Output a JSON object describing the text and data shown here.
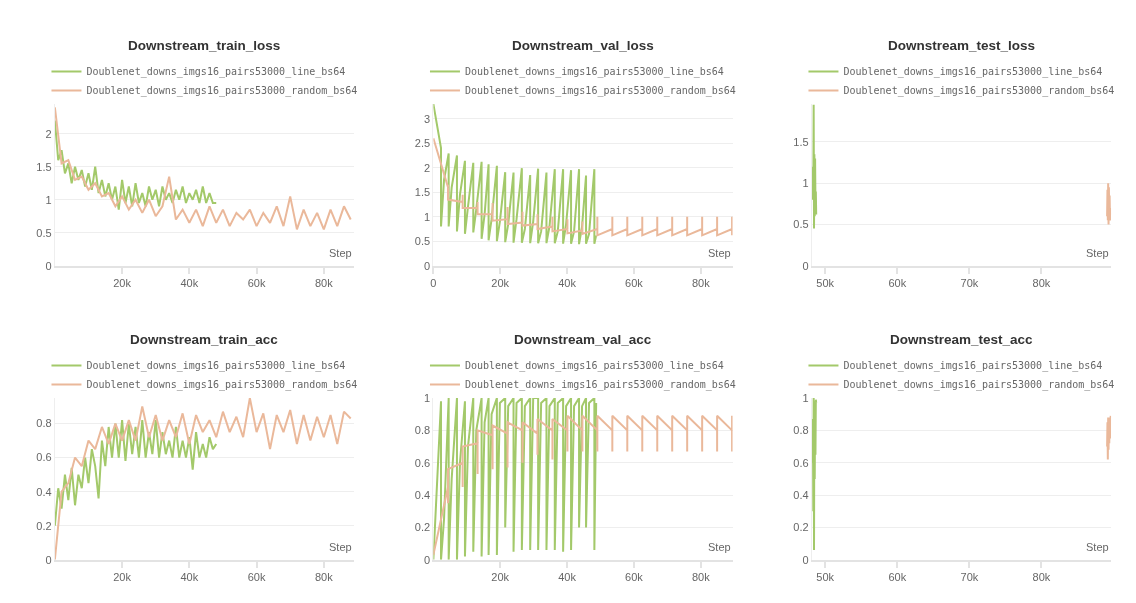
{
  "chart_data": [
    {
      "type": "line",
      "title": "Downstream_train_loss",
      "xlabel": "Step",
      "grid": "y",
      "legend": "top",
      "xlim": [
        0,
        89000
      ],
      "xticks": [
        {
          "value": 20000,
          "label": "20k"
        },
        {
          "value": 40000,
          "label": "40k"
        },
        {
          "value": 60000,
          "label": "60k"
        },
        {
          "value": 80000,
          "label": "80k"
        }
      ],
      "ylim": [
        0,
        2.45
      ],
      "yticks": [
        0,
        0.5,
        1,
        1.5,
        2
      ],
      "series": [
        {
          "name": "Doublenet_downs_imgs16_pairs53000_line_bs64",
          "color": "#a3c96a",
          "x": [
            0,
            1000,
            2000,
            3000,
            4000,
            5000,
            6000,
            7000,
            8000,
            9000,
            10000,
            11000,
            12000,
            13000,
            14000,
            15000,
            16000,
            17000,
            18000,
            19000,
            20000,
            21000,
            22000,
            23000,
            24000,
            25000,
            26000,
            27000,
            28000,
            29000,
            30000,
            31000,
            32000,
            33000,
            34000,
            35000,
            36000,
            37000,
            38000,
            39000,
            40000,
            41000,
            42000,
            43000,
            44000,
            45000,
            46000,
            47000,
            48000
          ],
          "values": [
            2.2,
            1.6,
            1.75,
            1.4,
            1.55,
            1.25,
            1.5,
            1.3,
            1.45,
            1.2,
            1.4,
            1.15,
            1.5,
            1.1,
            1.3,
            1.05,
            1.25,
            1.0,
            1.2,
            0.85,
            1.3,
            0.95,
            1.2,
            0.9,
            1.25,
            0.95,
            1.1,
            0.9,
            1.2,
            1.0,
            1.15,
            0.9,
            1.2,
            1.0,
            1.1,
            0.95,
            1.15,
            1.0,
            1.2,
            0.95,
            1.1,
            1.0,
            1.15,
            0.95,
            1.2,
            0.95,
            1.1,
            0.95,
            0.95
          ]
        },
        {
          "name": "Doublenet_downs_imgs16_pairs53000_random_bs64",
          "color": "#eab89a",
          "x": [
            0,
            2000,
            4000,
            6000,
            8000,
            10000,
            12000,
            14000,
            16000,
            18000,
            20000,
            22000,
            24000,
            26000,
            28000,
            30000,
            32000,
            34000,
            36000,
            38000,
            40000,
            42000,
            44000,
            46000,
            48000,
            50000,
            52000,
            54000,
            56000,
            58000,
            60000,
            62000,
            64000,
            66000,
            68000,
            70000,
            72000,
            74000,
            76000,
            78000,
            80000,
            82000,
            84000,
            86000,
            88000
          ],
          "values": [
            2.4,
            1.55,
            1.6,
            1.3,
            1.35,
            1.15,
            1.25,
            1.05,
            1.1,
            0.9,
            1.05,
            0.85,
            1.0,
            0.8,
            1.0,
            0.75,
            0.9,
            1.35,
            0.7,
            0.85,
            0.65,
            0.85,
            0.6,
            0.9,
            0.65,
            0.85,
            0.6,
            0.8,
            0.7,
            0.85,
            0.6,
            0.8,
            0.65,
            0.9,
            0.6,
            1.05,
            0.55,
            0.85,
            0.6,
            0.8,
            0.55,
            0.85,
            0.6,
            0.9,
            0.7
          ]
        }
      ]
    },
    {
      "type": "line",
      "title": "Downstream_val_loss",
      "xlabel": "Step",
      "grid": "y",
      "legend": "top",
      "xlim": [
        0,
        89500
      ],
      "xticks": [
        0,
        {
          "value": 20000,
          "label": "20k"
        },
        {
          "value": 40000,
          "label": "40k"
        },
        {
          "value": 60000,
          "label": "60k"
        },
        {
          "value": 80000,
          "label": "80k"
        }
      ],
      "ylim": [
        0,
        3.3
      ],
      "yticks": [
        0,
        0.5,
        1,
        1.5,
        2,
        2.5,
        3
      ],
      "series": [
        {
          "name": "Doublenet_downs_imgs16_pairs53000_line_bs64",
          "color": "#a3c96a",
          "x": [
            0,
            2290,
            2290,
            3190,
            4580,
            4580,
            5480,
            7060,
            7060,
            7960,
            9450,
            9450,
            10350,
            11940,
            11940,
            12840,
            14430,
            14430,
            15330,
            16520,
            16520,
            17420,
            19000,
            19000,
            19900,
            21490,
            21490,
            22390,
            23980,
            23980,
            24880,
            26470,
            26470,
            27370,
            28960,
            28960,
            29860,
            31340,
            31340,
            32240,
            33830,
            33830,
            34730,
            36320,
            36320,
            37220,
            38810,
            38810,
            39710,
            41190,
            41190,
            42090,
            43580,
            43580,
            44480,
            45670,
            45670,
            46570,
            48160,
            48160,
            48700
          ],
          "values": [
            3.3,
            2.4,
            0.8,
            1.75,
            2.29,
            0.8,
            1.6,
            2.25,
            0.7,
            1.45,
            2.14,
            0.65,
            1.2,
            2.1,
            0.68,
            1.15,
            2.12,
            0.55,
            1.05,
            2.07,
            0.52,
            0.95,
            2.04,
            0.5,
            0.9,
            1.91,
            0.48,
            0.85,
            1.9,
            0.47,
            0.95,
            1.99,
            0.47,
            0.75,
            1.85,
            0.46,
            0.9,
            1.98,
            0.46,
            0.7,
            1.9,
            0.46,
            0.8,
            1.97,
            0.46,
            0.7,
            1.97,
            0.45,
            0.85,
            1.95,
            0.45,
            0.7,
            1.97,
            0.44,
            0.8,
            1.84,
            0.45,
            0.65,
            1.97,
            0.45,
            0.62
          ]
        },
        {
          "name": "Doublenet_downs_imgs16_pairs53000_random_bs64",
          "color": "#eab89a",
          "x": [
            0,
            4380,
            4380,
            4380,
            8760,
            8760,
            8760,
            13230,
            13230,
            13230,
            17710,
            17710,
            17710,
            22190,
            22190,
            22190,
            26670,
            26670,
            26670,
            31140,
            31140,
            31140,
            35620,
            35620,
            35620,
            40100,
            40100,
            40100,
            44580,
            44580,
            44580,
            49050,
            49050,
            49050,
            53530,
            53530,
            53530,
            58010,
            58010,
            58010,
            62490,
            62490,
            62490,
            66970,
            66970,
            66970,
            71440,
            71440,
            71440,
            75920,
            75920,
            75920,
            80400,
            80400,
            80400,
            84880,
            84880,
            84880,
            89350,
            89350,
            89350
          ],
          "values": [
            2.6,
            1.6,
            1.65,
            1.35,
            1.3,
            1.45,
            1.18,
            1.18,
            1.3,
            1.05,
            1.05,
            1.28,
            0.92,
            0.95,
            1.2,
            0.85,
            0.88,
            1.1,
            0.82,
            0.85,
            1.05,
            0.75,
            0.8,
            1.0,
            0.7,
            0.75,
            0.95,
            0.66,
            0.72,
            0.9,
            0.65,
            0.75,
            1.0,
            0.62,
            0.75,
            1.0,
            0.62,
            0.75,
            1.0,
            0.62,
            0.75,
            1.0,
            0.62,
            0.75,
            1.0,
            0.62,
            0.75,
            1.0,
            0.62,
            0.75,
            1.0,
            0.62,
            0.75,
            1.0,
            0.62,
            0.75,
            1.0,
            0.62,
            0.75,
            1.0,
            0.62
          ]
        }
      ]
    },
    {
      "type": "line",
      "title": "Downstream_test_loss",
      "xlabel": "Step",
      "grid": "y",
      "legend": "top",
      "xlim": [
        48150,
        89650
      ],
      "xticks": [
        {
          "value": 50000,
          "label": "50k"
        },
        {
          "value": 60000,
          "label": "60k"
        },
        {
          "value": 70000,
          "label": "70k"
        },
        {
          "value": 80000,
          "label": "80k"
        }
      ],
      "ylim": [
        0,
        1.96
      ],
      "yticks": [
        0,
        0.5,
        1,
        1.5
      ],
      "series": [
        {
          "name": "Doublenet_downs_imgs16_pairs53000_line_bs64",
          "color": "#a3c96a",
          "x": [
            48250,
            48300,
            48350,
            48400,
            48450,
            48500,
            48550,
            48600,
            48650,
            48700,
            48750
          ],
          "values": [
            0.8,
            1.2,
            0.85,
            1.95,
            0.45,
            1.35,
            0.6,
            1.3,
            0.75,
            0.9,
            0.62
          ]
        },
        {
          "name": "Doublenet_downs_imgs16_pairs53000_random_bs64",
          "color": "#eab89a",
          "x": [
            89100,
            89150,
            89200,
            89250,
            89300,
            89350,
            89400,
            89450,
            89500,
            89550,
            89600
          ],
          "values": [
            0.6,
            0.92,
            0.55,
            1.0,
            0.5,
            0.95,
            0.6,
            0.85,
            0.55,
            0.7,
            0.62
          ]
        }
      ]
    },
    {
      "type": "line",
      "title": "Downstream_train_acc",
      "xlabel": "Step",
      "grid": "y",
      "legend": "top",
      "xlim": [
        0,
        89000
      ],
      "xticks": [
        {
          "value": 20000,
          "label": "20k"
        },
        {
          "value": 40000,
          "label": "40k"
        },
        {
          "value": 60000,
          "label": "60k"
        },
        {
          "value": 80000,
          "label": "80k"
        }
      ],
      "ylim": [
        0,
        0.95
      ],
      "yticks": [
        0,
        0.2,
        0.4,
        0.6,
        0.8
      ],
      "series": [
        {
          "name": "Doublenet_downs_imgs16_pairs53000_line_bs64",
          "color": "#a3c96a",
          "x": [
            0,
            1000,
            2000,
            3000,
            4000,
            5000,
            6000,
            7000,
            8000,
            9000,
            10000,
            11000,
            12000,
            13000,
            14000,
            15000,
            16000,
            17000,
            18000,
            19000,
            20000,
            21000,
            22000,
            23000,
            24000,
            25000,
            26000,
            27000,
            28000,
            29000,
            30000,
            31000,
            32000,
            33000,
            34000,
            35000,
            36000,
            37000,
            38000,
            39000,
            40000,
            41000,
            42000,
            43000,
            44000,
            45000,
            46000,
            47000,
            48000
          ],
          "values": [
            0.2,
            0.42,
            0.3,
            0.5,
            0.35,
            0.54,
            0.32,
            0.5,
            0.42,
            0.6,
            0.45,
            0.65,
            0.55,
            0.36,
            0.7,
            0.55,
            0.78,
            0.6,
            0.8,
            0.6,
            0.82,
            0.58,
            0.8,
            0.62,
            0.78,
            0.6,
            0.82,
            0.6,
            0.75,
            0.62,
            0.82,
            0.6,
            0.75,
            0.62,
            0.7,
            0.6,
            0.78,
            0.6,
            0.7,
            0.6,
            0.72,
            0.53,
            0.75,
            0.6,
            0.68,
            0.6,
            0.72,
            0.65,
            0.68
          ]
        },
        {
          "name": "Doublenet_downs_imgs16_pairs53000_random_bs64",
          "color": "#eab89a",
          "x": [
            0,
            2000,
            4000,
            6000,
            8000,
            10000,
            12000,
            14000,
            16000,
            18000,
            20000,
            22000,
            24000,
            26000,
            28000,
            30000,
            32000,
            34000,
            36000,
            38000,
            40000,
            42000,
            44000,
            46000,
            48000,
            50000,
            52000,
            54000,
            56000,
            58000,
            60000,
            62000,
            64000,
            66000,
            68000,
            70000,
            72000,
            74000,
            76000,
            78000,
            80000,
            82000,
            84000,
            86000,
            88000
          ],
          "values": [
            0.0,
            0.4,
            0.45,
            0.6,
            0.55,
            0.7,
            0.65,
            0.78,
            0.68,
            0.8,
            0.7,
            0.82,
            0.7,
            0.9,
            0.72,
            0.85,
            0.7,
            0.82,
            0.72,
            0.86,
            0.68,
            0.85,
            0.75,
            0.82,
            0.72,
            0.87,
            0.75,
            0.84,
            0.72,
            0.95,
            0.75,
            0.86,
            0.65,
            0.85,
            0.75,
            0.88,
            0.68,
            0.85,
            0.7,
            0.84,
            0.72,
            0.85,
            0.68,
            0.87,
            0.83
          ]
        }
      ]
    },
    {
      "type": "line",
      "title": "Downstream_val_acc",
      "xlabel": "Step",
      "grid": "y",
      "legend": "top",
      "xlim": [
        0,
        89500
      ],
      "xticks": [
        {
          "value": 20000,
          "label": "20k"
        },
        {
          "value": 40000,
          "label": "40k"
        },
        {
          "value": 60000,
          "label": "60k"
        },
        {
          "value": 80000,
          "label": "80k"
        }
      ],
      "ylim": [
        0,
        1
      ],
      "yticks": [
        0,
        0.2,
        0.4,
        0.6,
        0.8,
        1
      ],
      "series": [
        {
          "name": "Doublenet_downs_imgs16_pairs53000_line_bs64",
          "color": "#a3c96a",
          "x": [
            0,
            2290,
            2290,
            3190,
            4580,
            4580,
            5480,
            7060,
            7060,
            7960,
            9450,
            9450,
            10350,
            11940,
            11940,
            12840,
            14430,
            14430,
            15330,
            16520,
            16520,
            17420,
            19000,
            19000,
            19900,
            21490,
            21490,
            22390,
            23980,
            23980,
            24880,
            26470,
            26470,
            27370,
            28960,
            28960,
            29860,
            31340,
            31340,
            32240,
            33830,
            33830,
            34730,
            36320,
            36320,
            37220,
            38810,
            38810,
            39710,
            41190,
            41190,
            42090,
            43580,
            43580,
            44480,
            45670,
            45670,
            46570,
            48160,
            48160,
            48700
          ],
          "values": [
            0,
            0.98,
            0.0,
            0.25,
            1.0,
            0.0,
            0.5,
            1.0,
            0.0,
            0.6,
            0.98,
            0.02,
            0.7,
            1.0,
            0.05,
            0.8,
            1.0,
            0.02,
            0.85,
            1.0,
            0.03,
            0.9,
            1.0,
            0.03,
            0.97,
            1.0,
            0.2,
            0.95,
            1.0,
            0.05,
            0.97,
            1.0,
            0.06,
            0.95,
            1.0,
            0.06,
            1.0,
            1.0,
            0.06,
            0.97,
            1.0,
            0.06,
            0.95,
            1.0,
            0.06,
            0.97,
            1.0,
            0.05,
            0.95,
            1.0,
            0.06,
            0.95,
            1.0,
            0.2,
            0.95,
            1.0,
            0.2,
            0.97,
            1.0,
            0.06,
            0.97
          ]
        },
        {
          "name": "Doublenet_downs_imgs16_pairs53000_random_bs64",
          "color": "#eab89a",
          "x": [
            0,
            4380,
            4380,
            4380,
            8760,
            8760,
            8760,
            13230,
            13230,
            13230,
            17710,
            17710,
            17710,
            22190,
            22190,
            22190,
            26670,
            26670,
            26670,
            31140,
            31140,
            31140,
            35620,
            35620,
            35620,
            40100,
            40100,
            40100,
            44580,
            44580,
            44580,
            49050,
            49050,
            49050,
            53530,
            53530,
            53530,
            58010,
            58010,
            58010,
            62490,
            62490,
            62490,
            66970,
            66970,
            66970,
            71440,
            71440,
            71440,
            75920,
            75920,
            75920,
            80400,
            80400,
            80400,
            84880,
            84880,
            84880,
            89350,
            89350,
            89350
          ],
          "values": [
            0.03,
            0.45,
            0.35,
            0.56,
            0.6,
            0.45,
            0.7,
            0.72,
            0.53,
            0.8,
            0.77,
            0.56,
            0.83,
            0.78,
            0.57,
            0.85,
            0.8,
            0.6,
            0.85,
            0.78,
            0.65,
            0.87,
            0.8,
            0.62,
            0.87,
            0.8,
            0.67,
            0.89,
            0.8,
            0.67,
            0.89,
            0.8,
            0.67,
            0.89,
            0.8,
            0.67,
            0.89,
            0.8,
            0.67,
            0.89,
            0.8,
            0.67,
            0.89,
            0.8,
            0.67,
            0.89,
            0.8,
            0.67,
            0.89,
            0.8,
            0.67,
            0.89,
            0.8,
            0.67,
            0.89,
            0.8,
            0.67,
            0.89,
            0.8,
            0.67,
            0.89
          ]
        }
      ]
    },
    {
      "type": "line",
      "title": "Downstream_test_acc",
      "xlabel": "Step",
      "grid": "y",
      "legend": "top",
      "xlim": [
        48150,
        89650
      ],
      "xticks": [
        {
          "value": 50000,
          "label": "50k"
        },
        {
          "value": 60000,
          "label": "60k"
        },
        {
          "value": 70000,
          "label": "70k"
        },
        {
          "value": 80000,
          "label": "80k"
        }
      ],
      "ylim": [
        0,
        1
      ],
      "yticks": [
        0,
        0.2,
        0.4,
        0.6,
        0.8,
        1
      ],
      "series": [
        {
          "name": "Doublenet_downs_imgs16_pairs53000_line_bs64",
          "color": "#a3c96a",
          "x": [
            48250,
            48300,
            48350,
            48400,
            48450,
            48500,
            48550,
            48600,
            48650,
            48700,
            48750
          ],
          "values": [
            0.6,
            0.87,
            0.3,
            1.0,
            0.06,
            0.98,
            0.5,
            0.95,
            0.65,
            0.99,
            0.97
          ]
        },
        {
          "name": "Doublenet_downs_imgs16_pairs53000_random_bs64",
          "color": "#eab89a",
          "x": [
            89100,
            89150,
            89200,
            89250,
            89300,
            89350,
            89400,
            89450,
            89500,
            89550,
            89600
          ],
          "values": [
            0.7,
            0.85,
            0.62,
            0.88,
            0.68,
            0.85,
            0.72,
            0.88,
            0.75,
            0.85,
            0.89
          ]
        }
      ]
    }
  ]
}
